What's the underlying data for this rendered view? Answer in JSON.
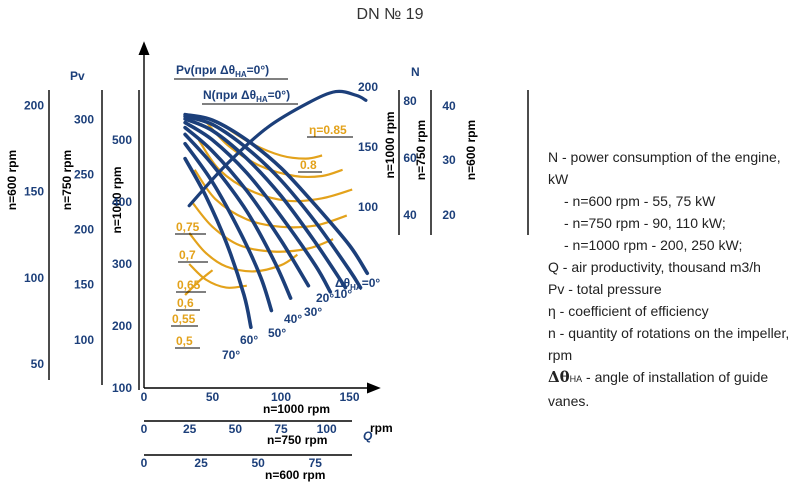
{
  "title": "DN № 19",
  "legend": {
    "line1": "N - power consumption of the engine, kW",
    "line2": "- n=600 rpm - 55, 75 kW",
    "line3": "- n=750 rpm - 90, 110 kW;",
    "line4": "- n=1000 rpm - 200, 250 kW;",
    "line5": "Q - air productivity, thousand m3/h",
    "line6": "Pv - total pressure",
    "line7": "η - coefficient of efficiency",
    "line8": "n - quantity of rotations on the impeller, rpm",
    "line9_symbol": "Δθ",
    "line9_sub": "НА",
    "line9_text": " - angle of installation of guide vanes."
  },
  "colors": {
    "curve": "#1c3f7a",
    "efficiency": "#e3a21b",
    "axis": "#000000"
  },
  "chart_data": {
    "type": "line",
    "title": "DN № 19",
    "xlabel": "Q",
    "x_axes": [
      {
        "label": "n=1000 rpm",
        "ticks": [
          "0",
          "50",
          "100",
          "150"
        ]
      },
      {
        "label": "n=750 rpm",
        "ticks": [
          "0",
          "25",
          "50",
          "75",
          "100"
        ],
        "unit": "rpm"
      },
      {
        "label": "n=600 rpm",
        "ticks": [
          "0",
          "25",
          "50",
          "75"
        ]
      }
    ],
    "pv_axes": [
      {
        "label": "n=1000 rpm",
        "ticks": [
          "100",
          "200",
          "300",
          "400",
          "500"
        ]
      },
      {
        "label": "n=750 rpm",
        "ticks": [
          "100",
          "150",
          "200",
          "250",
          "300"
        ]
      },
      {
        "label": "n=600 rpm",
        "ticks": [
          "50",
          "100",
          "150",
          "200"
        ]
      }
    ],
    "pv_header": "Pv",
    "n_header": "N",
    "n_axes": [
      {
        "label": "n=1000 rpm",
        "ticks": [
          "100",
          "150",
          "200"
        ]
      },
      {
        "label": "n=750 rpm",
        "ticks": [
          "40",
          "60",
          "80"
        ]
      },
      {
        "label": "n=600 rpm",
        "ticks": [
          "20",
          "30",
          "40"
        ]
      }
    ],
    "curve_labels": {
      "pv": "Pv(при Δθ",
      "pv_sub": "НА",
      "pv_end": "=0°)",
      "n": "N(при Δθ",
      "n_sub": "НА",
      "n_end": "=0°)"
    },
    "efficiency_labels": [
      "η=0.85",
      "0.8",
      "0,75",
      "0,7",
      "0,65",
      "0,6",
      "0,55",
      "0,5"
    ],
    "angle_labels": [
      "Δθ",
      "=0°",
      "10°",
      "20°",
      "30°",
      "40°",
      "50°",
      "60°",
      "70°"
    ],
    "angle_sub": "НА",
    "pressure_curves": [
      {
        "name": "0°",
        "points": [
          [
            30,
            541
          ],
          [
            50,
            532
          ],
          [
            75,
            500
          ],
          [
            100,
            455
          ],
          [
            125,
            395
          ],
          [
            150,
            330
          ],
          [
            163,
            285
          ]
        ]
      },
      {
        "name": "10°",
        "points": [
          [
            30,
            538
          ],
          [
            50,
            525
          ],
          [
            75,
            487
          ],
          [
            100,
            435
          ],
          [
            125,
            368
          ],
          [
            150,
            290
          ],
          [
            158,
            262
          ]
        ]
      },
      {
        "name": "20°",
        "points": [
          [
            30,
            534
          ],
          [
            50,
            515
          ],
          [
            75,
            470
          ],
          [
            100,
            410
          ],
          [
            125,
            335
          ],
          [
            147,
            262
          ]
        ]
      },
      {
        "name": "30°",
        "points": [
          [
            30,
            528
          ],
          [
            50,
            500
          ],
          [
            75,
            447
          ],
          [
            100,
            377
          ],
          [
            125,
            298
          ],
          [
            136,
            255
          ]
        ]
      },
      {
        "name": "40°",
        "points": [
          [
            30,
            520
          ],
          [
            50,
            482
          ],
          [
            75,
            418
          ],
          [
            100,
            338
          ],
          [
            120,
            265
          ]
        ]
      },
      {
        "name": "50°",
        "points": [
          [
            30,
            509
          ],
          [
            50,
            460
          ],
          [
            75,
            385
          ],
          [
            95,
            305
          ],
          [
            107,
            245
          ]
        ]
      },
      {
        "name": "60°",
        "points": [
          [
            30,
            494
          ],
          [
            50,
            432
          ],
          [
            70,
            352
          ],
          [
            85,
            280
          ],
          [
            93,
            225
          ]
        ]
      },
      {
        "name": "70°",
        "points": [
          [
            30,
            470
          ],
          [
            45,
            410
          ],
          [
            60,
            335
          ],
          [
            73,
            250
          ],
          [
            78,
            198
          ]
        ]
      }
    ],
    "power_curve_pv_scale": [
      [
        33,
        394
      ],
      [
        60,
        460
      ],
      [
        90,
        520
      ],
      [
        120,
        560
      ],
      [
        140,
        578
      ],
      [
        155,
        572
      ],
      [
        162,
        564
      ]
    ],
    "efficiency_curves": [
      {
        "eta": "0,5",
        "points": [
          [
            30,
            250
          ],
          [
            40,
            272
          ],
          [
            50,
            290
          ]
        ]
      },
      {
        "eta": "0,55",
        "points": [
          [
            33,
            300
          ],
          [
            45,
            275
          ],
          [
            60,
            262
          ],
          [
            75,
            265
          ]
        ]
      },
      {
        "eta": "0,6",
        "points": [
          [
            33,
            350
          ],
          [
            45,
            318
          ],
          [
            60,
            296
          ],
          [
            80,
            288
          ],
          [
            100,
            298
          ],
          [
            112,
            315
          ]
        ]
      },
      {
        "eta": "0,65",
        "points": [
          [
            35,
            400
          ],
          [
            50,
            360
          ],
          [
            70,
            330
          ],
          [
            95,
            320
          ],
          [
            120,
            325
          ],
          [
            138,
            340
          ]
        ]
      },
      {
        "eta": "0,7",
        "points": [
          [
            37,
            452
          ],
          [
            52,
            405
          ],
          [
            75,
            372
          ],
          [
            100,
            360
          ],
          [
            125,
            362
          ],
          [
            148,
            378
          ]
        ]
      },
      {
        "eta": "0,75",
        "points": [
          [
            40,
            500
          ],
          [
            55,
            452
          ],
          [
            78,
            418
          ],
          [
            105,
            402
          ],
          [
            130,
            406
          ],
          [
            152,
            420
          ]
        ]
      },
      {
        "eta": "0.8",
        "points": [
          [
            45,
            530
          ],
          [
            62,
            490
          ],
          [
            85,
            458
          ],
          [
            110,
            442
          ],
          [
            130,
            442
          ],
          [
            145,
            452
          ]
        ]
      },
      {
        "eta": "0.85",
        "points": [
          [
            60,
            520
          ],
          [
            78,
            495
          ],
          [
            100,
            475
          ],
          [
            118,
            470
          ],
          [
            130,
            475
          ]
        ]
      }
    ]
  }
}
